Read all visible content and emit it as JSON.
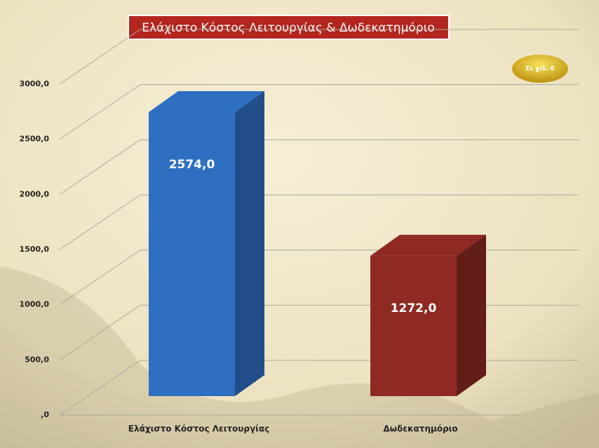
{
  "chart_data": {
    "type": "bar",
    "title": "Ελάχιστο Κόστος Λειτουργίας & Δωδεκατημόριο",
    "unit_note": "Σε χιλ. €",
    "categories": [
      "Ελάχιστο Κόστος Λειτουργίας",
      "Δωδεκατημόριο"
    ],
    "values": [
      2574,
      1272
    ],
    "value_labels": [
      "2574,0",
      "1272,0"
    ],
    "colors": [
      "#2f6fc2",
      "#8e2a22"
    ],
    "ylim": [
      0,
      3000
    ],
    "yticks": [
      {
        "value": 0,
        "label": ",0"
      },
      {
        "value": 500,
        "label": "500,0"
      },
      {
        "value": 1000,
        "label": "1000,0"
      },
      {
        "value": 1500,
        "label": "1500,0"
      },
      {
        "value": 2000,
        "label": "2000,0"
      },
      {
        "value": 2500,
        "label": "2500,0"
      },
      {
        "value": 3000,
        "label": "3000,0"
      }
    ],
    "grid": true
  }
}
